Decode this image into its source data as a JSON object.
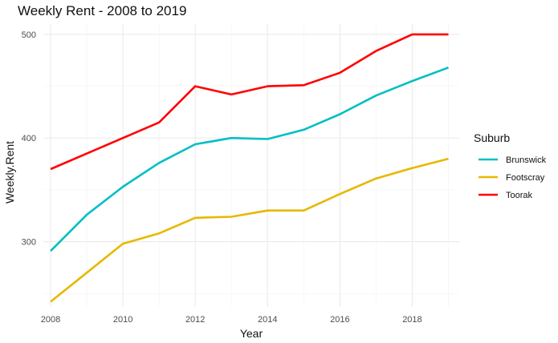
{
  "chart_data": {
    "type": "line",
    "title": "Weekly Rent - 2008 to 2019",
    "xlabel": "Year",
    "ylabel": "Weekly.Rent",
    "x": [
      2008,
      2009,
      2010,
      2011,
      2012,
      2013,
      2014,
      2015,
      2016,
      2017,
      2018,
      2019
    ],
    "xlim": [
      2007.8,
      2019.3
    ],
    "ylim": [
      237,
      510
    ],
    "x_ticks": [
      2008,
      2010,
      2012,
      2014,
      2016,
      2018
    ],
    "y_ticks": [
      300,
      400,
      500
    ],
    "grid": true,
    "legend": {
      "title": "Suburb",
      "position": "right"
    },
    "series": [
      {
        "name": "Brunswick",
        "color": "#00BFC4",
        "values": [
          291,
          326,
          353,
          376,
          394,
          400,
          399,
          408,
          423,
          441,
          455,
          468
        ]
      },
      {
        "name": "Footscray",
        "color": "#E7B800",
        "values": [
          242,
          270,
          298,
          308,
          323,
          324,
          330,
          330,
          346,
          361,
          371,
          380
        ]
      },
      {
        "name": "Toorak",
        "color": "#FF0000",
        "values": [
          370,
          385,
          400,
          415,
          450,
          442,
          450,
          451,
          463,
          484,
          500,
          500
        ]
      }
    ]
  }
}
